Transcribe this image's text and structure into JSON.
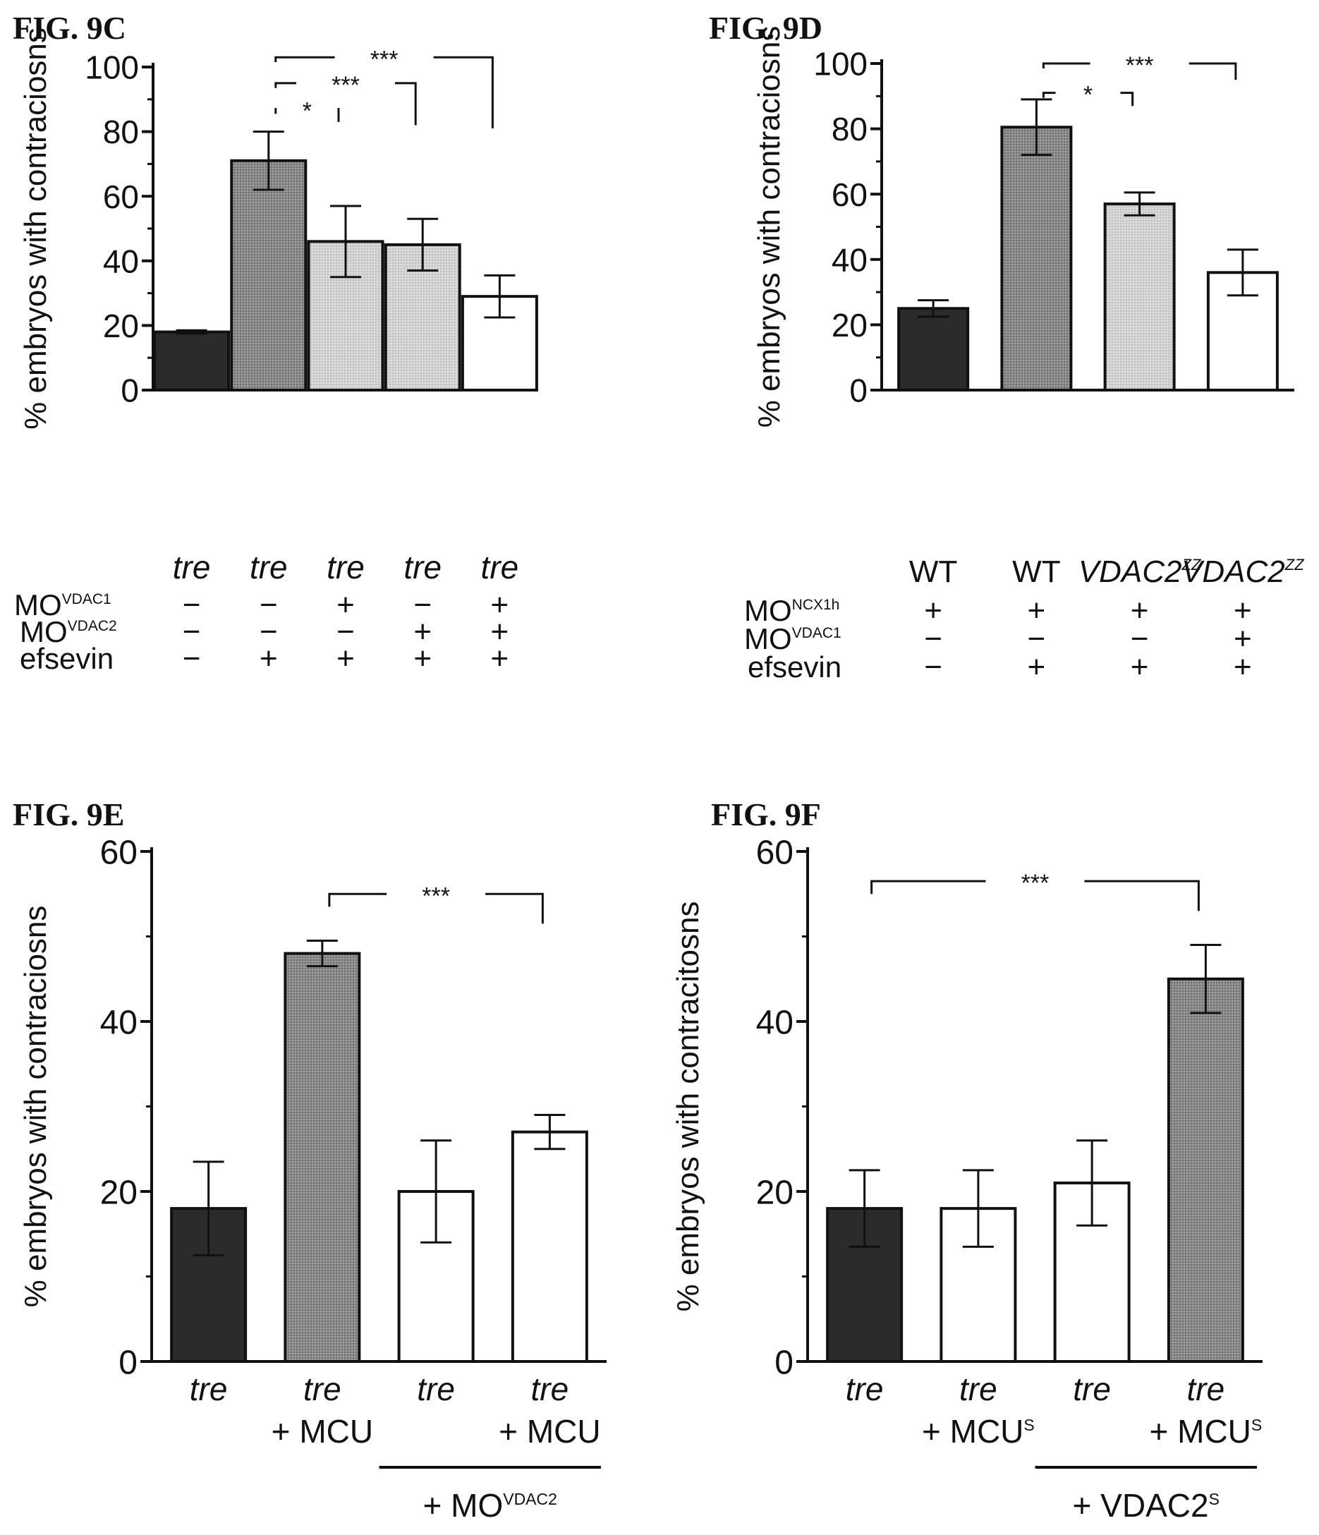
{
  "colors": {
    "ink": "#111111",
    "bar_black": "#2b2b2b",
    "bar_dark_gray": "#8a8a8a",
    "bar_light_gray": "#d2d2d2",
    "bar_white": "#ffffff"
  },
  "chart_data": [
    {
      "type": "bar",
      "panel_label": "FIG. 9C",
      "title": "",
      "ylabel": "% embryos with contraciosns",
      "xlabel": "",
      "ylim": [
        0,
        100
      ],
      "yticks": [
        0,
        20,
        40,
        60,
        80,
        100
      ],
      "y_minor_step": 10,
      "categories": [
        "tre",
        "tre",
        "tre",
        "tre",
        "tre"
      ],
      "categories_italic": true,
      "values": [
        18,
        71,
        46,
        45,
        29
      ],
      "errors": [
        0.5,
        9,
        11,
        8,
        6.5
      ],
      "bar_fills": [
        "black",
        "dark-gray",
        "light-gray",
        "light-gray",
        "white"
      ],
      "condition_rows": [
        {
          "label": "MO",
          "label_sup": "VDAC1",
          "values": [
            "−",
            "−",
            "+",
            "−",
            "+"
          ]
        },
        {
          "label": "MO",
          "label_sup": "VDAC2",
          "values": [
            "−",
            "−",
            "−",
            "+",
            "+"
          ]
        },
        {
          "label": "efsevin",
          "label_sup": "",
          "values": [
            "−",
            "+",
            "+",
            "+",
            "+"
          ]
        }
      ],
      "significance": [
        {
          "from": 1,
          "to": 2,
          "label": "*",
          "y": 87,
          "drop": 4
        },
        {
          "from": 1,
          "to": 3,
          "label": "***",
          "y": 95,
          "drop": 13
        },
        {
          "from": 1,
          "to": 4,
          "label": "***",
          "y": 103,
          "drop": 22
        }
      ],
      "underlines": [],
      "grid": false,
      "legend": "none"
    },
    {
      "type": "bar",
      "panel_label": "FIG. 9D",
      "title": "",
      "ylabel": "% embryos with contraciosns",
      "xlabel": "",
      "ylim": [
        0,
        100
      ],
      "yticks": [
        0,
        20,
        40,
        60,
        80,
        100
      ],
      "y_minor_step": 10,
      "categories": [
        "WT",
        "WT",
        "VDAC2",
        "VDAC2"
      ],
      "category_sups": [
        "",
        "",
        "ZZ",
        "ZZ"
      ],
      "categories_italic": false,
      "values": [
        25,
        80.5,
        57,
        36
      ],
      "errors": [
        2.5,
        8.5,
        3.5,
        7
      ],
      "bar_fills": [
        "black",
        "dark-gray",
        "light-gray",
        "white"
      ],
      "condition_rows": [
        {
          "label": "MO",
          "label_sup": "NCX1h",
          "values": [
            "+",
            "+",
            "+",
            "+"
          ]
        },
        {
          "label": "MO",
          "label_sup": "VDAC1",
          "values": [
            "−",
            "−",
            "−",
            "+"
          ]
        },
        {
          "label": "efsevin",
          "label_sup": "",
          "values": [
            "−",
            "+",
            "+",
            "+"
          ]
        }
      ],
      "significance": [
        {
          "from": 1,
          "to": 2,
          "label": "*",
          "y": 91,
          "drop": 4
        },
        {
          "from": 1,
          "to": 3,
          "label": "***",
          "y": 100,
          "drop": 5
        }
      ],
      "underlines": [],
      "grid": false,
      "legend": "none"
    },
    {
      "type": "bar",
      "panel_label": "FIG. 9E",
      "title": "",
      "ylabel": "% embryos with contraciosns",
      "xlabel": "",
      "ylim": [
        0,
        60
      ],
      "yticks": [
        0,
        20,
        40,
        60
      ],
      "y_minor_step": 10,
      "categories": [
        "tre",
        "tre",
        "tre",
        "tre"
      ],
      "categories_italic": true,
      "category_suffixes": [
        "",
        "+ MCU",
        "",
        "+ MCU"
      ],
      "suffix_sups": [
        "",
        "",
        "",
        ""
      ],
      "values": [
        18,
        48,
        20,
        27
      ],
      "errors": [
        5.5,
        1.5,
        6,
        2
      ],
      "bar_fills": [
        "black",
        "dark-gray",
        "white",
        "white"
      ],
      "condition_rows": [],
      "significance": [
        {
          "from": 1,
          "to": 3,
          "label": "***",
          "y": 55,
          "drop": 3.5
        }
      ],
      "underlines": [
        {
          "from": 2,
          "to": 3,
          "label": "+ MO",
          "label_sup": "VDAC2"
        }
      ],
      "grid": false,
      "legend": "none"
    },
    {
      "type": "bar",
      "panel_label": "FIG. 9F",
      "title": "",
      "ylabel": "% embryos with contracitosns",
      "xlabel": "",
      "ylim": [
        0,
        60
      ],
      "yticks": [
        0,
        20,
        40,
        60
      ],
      "y_minor_step": 10,
      "categories": [
        "tre",
        "tre",
        "tre",
        "tre"
      ],
      "categories_italic": true,
      "category_suffixes": [
        "",
        "+ MCU",
        "",
        "+ MCU"
      ],
      "suffix_sups": [
        "",
        "S",
        "",
        "S"
      ],
      "values": [
        18,
        18,
        21,
        45
      ],
      "errors": [
        4.5,
        4.5,
        5,
        4
      ],
      "bar_fills": [
        "black",
        "white",
        "white",
        "dark-gray"
      ],
      "condition_rows": [],
      "significance": [
        {
          "from": 0,
          "to": 3,
          "label": "***",
          "y": 56.5,
          "drop": 3.5
        }
      ],
      "underlines": [
        {
          "from": 2,
          "to": 3,
          "label": "+ VDAC2",
          "label_sup": "S"
        }
      ],
      "grid": false,
      "legend": "none"
    }
  ]
}
